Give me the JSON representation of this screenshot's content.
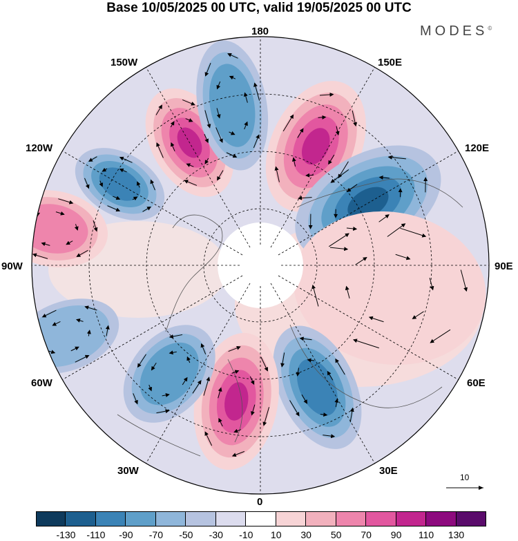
{
  "title": "Base 10/05/2025 00 UTC, valid 19/05/2025 00 UTC",
  "brand": "MODES",
  "brand_mark": "©",
  "longitude_labels": {
    "top": "180",
    "bottom": "0",
    "left": "90W",
    "right": "90E",
    "upper_left_1": "150W",
    "upper_left_2": "120W",
    "upper_right_1": "150E",
    "upper_right_2": "120E",
    "lower_left_1": "60W",
    "lower_left_2": "30W",
    "lower_right_1": "60E",
    "lower_right_2": "30E"
  },
  "vector_scale_label": "10",
  "colorbar": {
    "ticks": [
      "-130",
      "-110",
      "-90",
      "-70",
      "-50",
      "-30",
      "-10",
      "10",
      "30",
      "50",
      "70",
      "90",
      "110",
      "130"
    ],
    "colors": [
      "#0e3a5c",
      "#1d5f8f",
      "#3b83b6",
      "#5f9fc9",
      "#8fb6da",
      "#b6c3e0",
      "#dcdcee",
      "#ffffff",
      "#f7d4d6",
      "#f2b1bd",
      "#ee85ac",
      "#e2579f",
      "#c2268e",
      "#8d0a7e",
      "#5a0b6b"
    ]
  },
  "map": {
    "projection": "north-polar-stereographic",
    "anomaly_centers": [
      {
        "sign": "positive",
        "strength": 100,
        "location": "150W"
      },
      {
        "sign": "negative",
        "strength": -70,
        "location": "170W"
      },
      {
        "sign": "positive",
        "strength": 110,
        "location": "155E"
      },
      {
        "sign": "negative",
        "strength": -100,
        "location": "120E"
      },
      {
        "sign": "positive",
        "strength": 30,
        "location": "80E"
      },
      {
        "sign": "negative",
        "strength": -90,
        "location": "25E"
      },
      {
        "sign": "positive",
        "strength": 100,
        "location": "10W"
      },
      {
        "sign": "negative",
        "strength": -70,
        "location": "40W"
      },
      {
        "sign": "negative",
        "strength": -80,
        "location": "120W"
      },
      {
        "sign": "positive",
        "strength": 70,
        "location": "100W"
      },
      {
        "sign": "negative",
        "strength": -50,
        "location": "70W"
      }
    ]
  }
}
